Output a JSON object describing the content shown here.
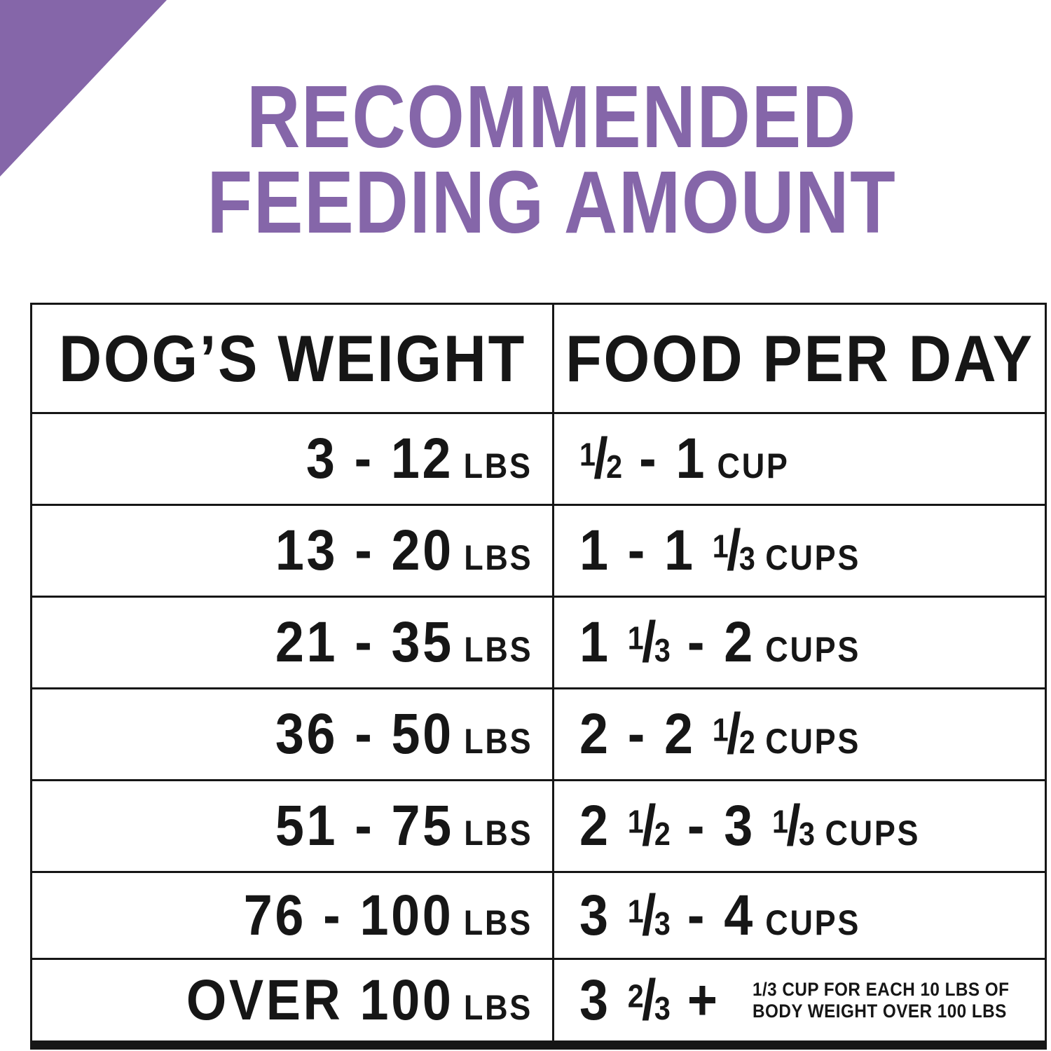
{
  "colors": {
    "accent_purple": "#8566a9",
    "text_black": "#161616"
  },
  "decor": {
    "corner_triangle": "purple corner triangle"
  },
  "title": {
    "line1": "RECOMMENDED",
    "line2": "FEEDING AMOUNT"
  },
  "table": {
    "headers": [
      "DOG’S WEIGHT",
      "FOOD PER DAY"
    ],
    "rows": [
      {
        "weight": "3 - 12",
        "weight_unit": "LBS",
        "food": "1/2 - 1",
        "food_unit": "CUP"
      },
      {
        "weight": "13 - 20",
        "weight_unit": "LBS",
        "food": "1 - 1 1/3",
        "food_unit": "CUPS"
      },
      {
        "weight": "21 - 35",
        "weight_unit": "LBS",
        "food": "1 1/3 - 2",
        "food_unit": "CUPS"
      },
      {
        "weight": "36 - 50",
        "weight_unit": "LBS",
        "food": "2 - 2 1/2",
        "food_unit": "CUPS"
      },
      {
        "weight": "51 - 75",
        "weight_unit": "LBS",
        "food": "2 1/2 - 3 1/3",
        "food_unit": "CUPS"
      },
      {
        "weight": "76 - 100",
        "weight_unit": "LBS",
        "food": "3 1/3 - 4",
        "food_unit": "CUPS"
      },
      {
        "weight": "OVER 100",
        "weight_unit": "LBS",
        "food": "3 2/3 +",
        "note_line1": "1/3 CUP FOR EACH 10 LBS OF",
        "note_line2": "BODY WEIGHT OVER 100 LBS"
      }
    ]
  },
  "chart_data": {
    "type": "table",
    "title": "RECOMMENDED FEEDING AMOUNT",
    "columns": [
      "DOG'S WEIGHT",
      "FOOD PER DAY"
    ],
    "rows": [
      [
        "3 - 12 LBS",
        "1/2 - 1 CUP"
      ],
      [
        "13 - 20 LBS",
        "1 - 1 1/3 CUPS"
      ],
      [
        "21 - 35 LBS",
        "1 1/3 - 2 CUPS"
      ],
      [
        "36 - 50 LBS",
        "2 - 2 1/2 CUPS"
      ],
      [
        "51 - 75 LBS",
        "2 1/2 - 3 1/3 CUPS"
      ],
      [
        "76 - 100 LBS",
        "3 1/3 - 4 CUPS"
      ],
      [
        "OVER 100 LBS",
        "3 2/3 + 1/3 CUP FOR EACH 10 LBS OF BODY WEIGHT OVER 100 LBS"
      ]
    ]
  }
}
